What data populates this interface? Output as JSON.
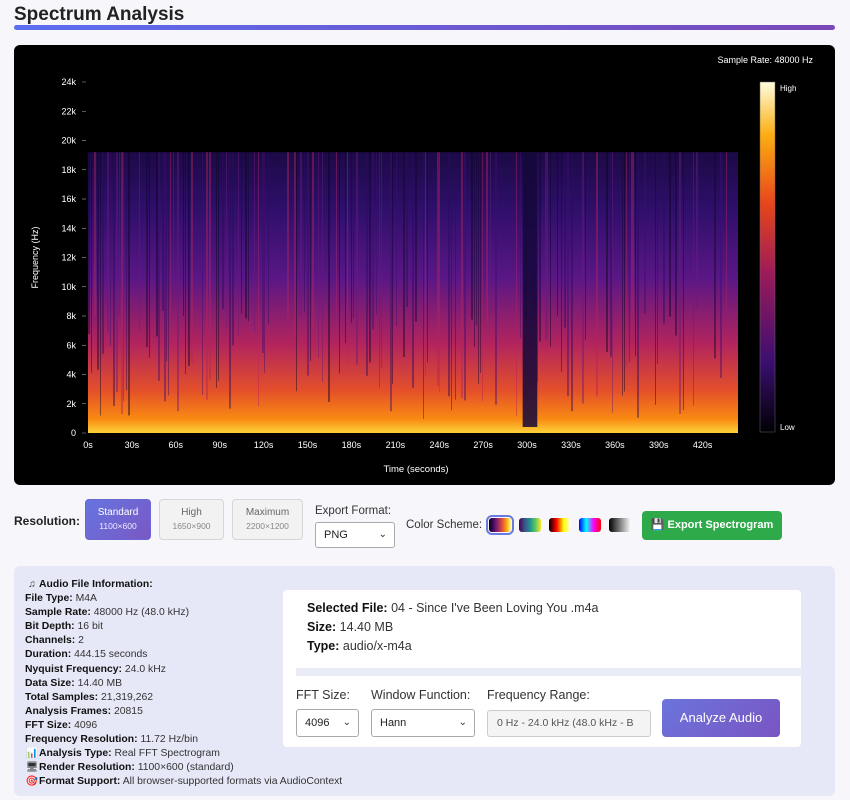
{
  "page_title": "Spectrum Analysis",
  "spectrogram": {
    "sample_rate_label": "Sample Rate: 48000 Hz",
    "y_axis_label": "Frequency (Hz)",
    "x_axis_label": "Time (seconds)",
    "y_ticks": [
      "24k",
      "22k",
      "20k",
      "18k",
      "16k",
      "14k",
      "12k",
      "10k",
      "8k",
      "6k",
      "4k",
      "2k",
      "0"
    ],
    "x_ticks": [
      "0s",
      "30s",
      "60s",
      "90s",
      "120s",
      "150s",
      "180s",
      "210s",
      "240s",
      "270s",
      "300s",
      "330s",
      "360s",
      "390s",
      "420s"
    ],
    "colorbar_high": "High",
    "colorbar_low": "Low"
  },
  "resolution": {
    "label": "Resolution:",
    "options": [
      {
        "name": "Standard",
        "size": "1100×600",
        "active": true
      },
      {
        "name": "High",
        "size": "1650×900",
        "active": false
      },
      {
        "name": "Maximum",
        "size": "2200×1200",
        "active": false
      }
    ]
  },
  "export": {
    "label": "Export Format:",
    "value": "PNG",
    "button": "Export Spectrogram"
  },
  "color_scheme": {
    "label": "Color Scheme:",
    "schemes": [
      {
        "name": "inferno",
        "gradient": "linear-gradient(90deg,#000004,#420a68,#932667,#dd513a,#fca50a,#fcffa4)"
      },
      {
        "name": "viridis",
        "gradient": "linear-gradient(90deg,#440154,#3b528b,#21918c,#5ec962,#fde725)"
      },
      {
        "name": "hot",
        "gradient": "linear-gradient(90deg,#000000,#ff0000,#ffff00,#ffffff)"
      },
      {
        "name": "rainbow",
        "gradient": "linear-gradient(90deg,#0000ff,#00ffff,#ff00ff,#ff0000)"
      },
      {
        "name": "grayscale",
        "gradient": "linear-gradient(90deg,#000000,#ffffff)"
      }
    ]
  },
  "audio_info": {
    "heading": "Audio File Information:",
    "rows": [
      {
        "label": "File Type:",
        "value": "M4A"
      },
      {
        "label": "Sample Rate:",
        "value": "48000 Hz (48.0 kHz)"
      },
      {
        "label": "Bit Depth:",
        "value": "16 bit"
      },
      {
        "label": "Channels:",
        "value": "2"
      },
      {
        "label": "Duration:",
        "value": "444.15 seconds"
      },
      {
        "label": "Nyquist Frequency:",
        "value": "24.0 kHz"
      },
      {
        "label": "Data Size:",
        "value": "14.40 MB"
      },
      {
        "label": "Total Samples:",
        "value": "21,319,262"
      },
      {
        "label": "Analysis Frames:",
        "value": "20815"
      },
      {
        "label": "FFT Size:",
        "value": "4096"
      },
      {
        "label": "Frequency Resolution:",
        "value": "11.72 Hz/bin"
      }
    ],
    "analysis_type_label": "Analysis Type:",
    "analysis_type_value": "Real FFT Spectrogram",
    "render_resolution_label": "Render Resolution:",
    "render_resolution_value": "1100×600 (standard)",
    "format_support_label": "Format Support:",
    "format_support_value": "All browser-supported formats via AudioContext"
  },
  "selected_file": {
    "file_label": "Selected File:",
    "file_value": "04 - Since I've Been Loving You .m4a",
    "size_label": "Size:",
    "size_value": "14.40 MB",
    "type_label": "Type:",
    "type_value": "audio/x-m4a"
  },
  "controls": {
    "fft_label": "FFT Size:",
    "fft_value": "4096",
    "window_label": "Window Function:",
    "window_value": "Hann",
    "range_label": "Frequency Range:",
    "range_value": "0 Hz - 24.0 kHz (48.0 kHz - B",
    "analyze_button": "Analyze Audio"
  }
}
